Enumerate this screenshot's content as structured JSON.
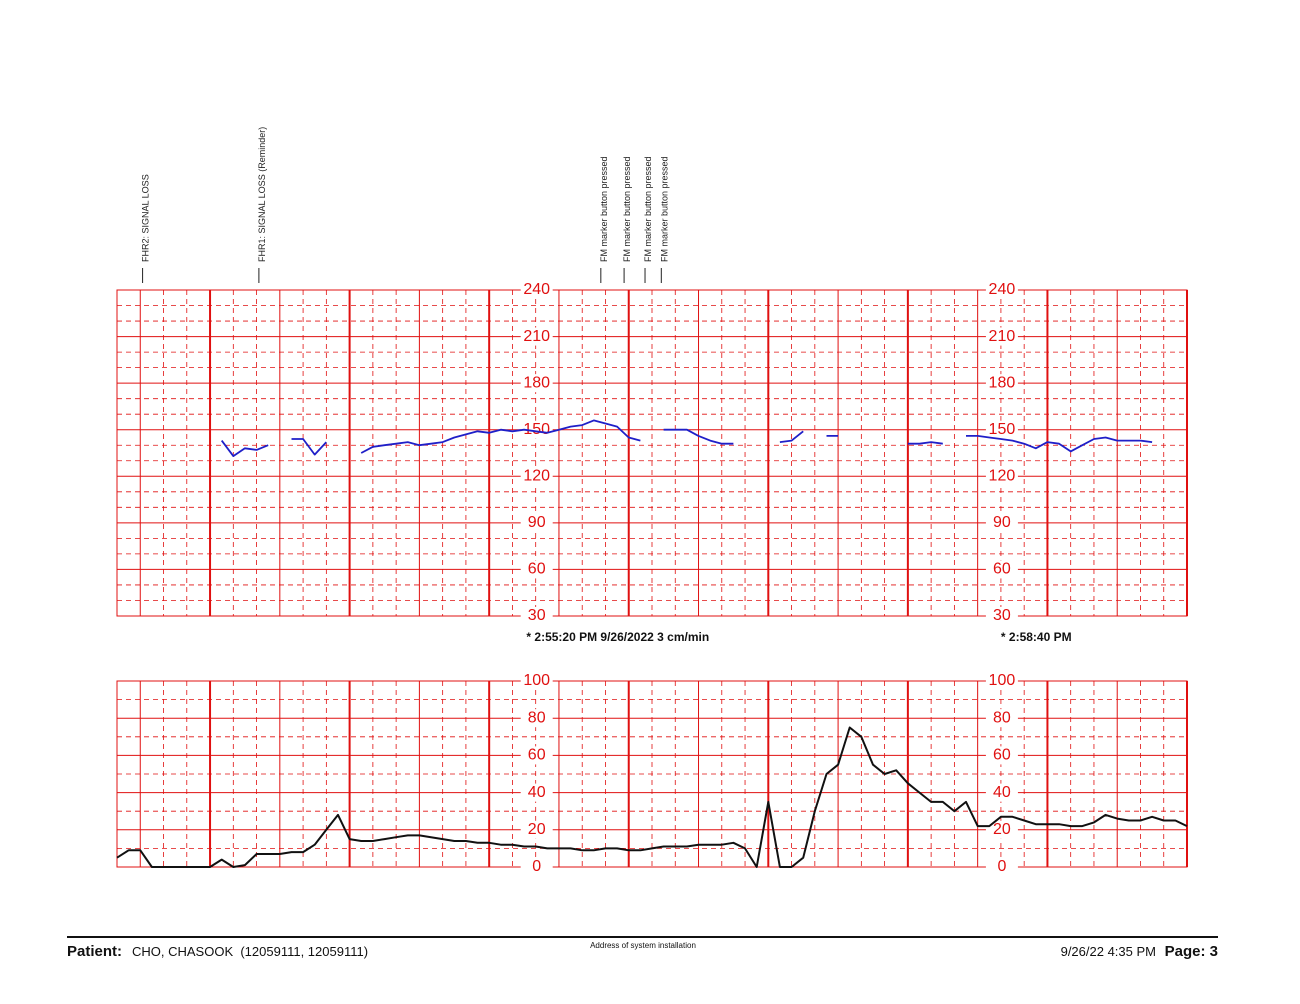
{
  "chart_data": [
    {
      "type": "line",
      "xlim": [
        0,
        460
      ],
      "ylim": [
        30,
        240
      ],
      "yticks": [
        30,
        60,
        90,
        120,
        150,
        180,
        210,
        240
      ],
      "color": "#1f1fc8",
      "x": [
        0,
        5,
        10,
        15,
        20,
        25,
        30,
        35,
        40,
        45,
        50,
        55,
        60,
        65,
        70,
        75,
        80,
        85,
        90,
        95,
        100,
        105,
        110,
        115,
        120,
        125,
        130,
        135,
        140,
        145,
        150,
        155,
        160,
        165,
        170,
        175,
        180,
        185,
        190,
        195,
        200,
        205,
        210,
        215,
        220,
        225,
        230,
        235,
        240,
        245,
        250,
        255,
        260,
        265,
        270,
        275,
        280,
        285,
        290,
        295,
        300,
        305,
        310,
        315,
        320,
        325,
        330,
        335,
        340,
        345,
        350,
        355,
        360,
        365,
        370,
        375,
        380,
        385,
        390,
        395,
        400,
        405,
        410,
        415,
        420,
        425,
        430,
        435,
        440,
        445,
        450,
        455,
        460
      ],
      "values": [
        null,
        null,
        null,
        null,
        null,
        null,
        null,
        null,
        null,
        143,
        133,
        138,
        137,
        140,
        null,
        144,
        144,
        134,
        142,
        null,
        null,
        135,
        139,
        140,
        141,
        142,
        140,
        141,
        142,
        145,
        147,
        149,
        148,
        150,
        149,
        150,
        149,
        148,
        150,
        152,
        153,
        156,
        154,
        152,
        145,
        143,
        null,
        150,
        150,
        150,
        146,
        143,
        141,
        141,
        null,
        null,
        null,
        142,
        143,
        149,
        null,
        146,
        146,
        null,
        null,
        null,
        null,
        null,
        141,
        141,
        142,
        141,
        null,
        146,
        146,
        145,
        144,
        143,
        141,
        138,
        142,
        141,
        136,
        140,
        144,
        145,
        143,
        143,
        143,
        142,
        null,
        null,
        null
      ],
      "annotations": [
        {
          "x": 11,
          "text": "FHR2: SIGNAL LOSS"
        },
        {
          "x": 61,
          "text": "FHR1: SIGNAL LOSS (Reminder)"
        },
        {
          "x": 208,
          "text": "FM marker button pressed"
        },
        {
          "x": 218,
          "text": "FM marker button pressed"
        },
        {
          "x": 227,
          "text": "FM marker button pressed"
        },
        {
          "x": 234,
          "text": "FM marker button pressed"
        }
      ],
      "time_labels": [
        {
          "x": 176,
          "text": "* 2:55:20 PM  9/26/2022  3 cm/min"
        },
        {
          "x": 380,
          "text": "* 2:58:40 PM"
        }
      ]
    },
    {
      "type": "line",
      "xlim": [
        0,
        460
      ],
      "ylim": [
        0,
        100
      ],
      "yticks": [
        0,
        20,
        40,
        60,
        80,
        100
      ],
      "color": "#111111",
      "x": [
        0,
        5,
        10,
        15,
        20,
        25,
        30,
        35,
        40,
        45,
        50,
        55,
        60,
        65,
        70,
        75,
        80,
        85,
        90,
        95,
        100,
        105,
        110,
        115,
        120,
        125,
        130,
        135,
        140,
        145,
        150,
        155,
        160,
        165,
        170,
        175,
        180,
        185,
        190,
        195,
        200,
        205,
        210,
        215,
        220,
        225,
        230,
        235,
        240,
        245,
        250,
        255,
        260,
        265,
        270,
        275,
        280,
        285,
        290,
        295,
        300,
        305,
        310,
        315,
        320,
        325,
        330,
        335,
        340,
        345,
        350,
        355,
        360,
        365,
        370,
        375,
        380,
        385,
        390,
        395,
        400,
        405,
        410,
        415,
        420,
        425,
        430,
        435,
        440,
        445,
        450,
        455,
        460
      ],
      "values": [
        5,
        9,
        9,
        0,
        0,
        0,
        0,
        0,
        0,
        4,
        0,
        1,
        7,
        7,
        7,
        8,
        8,
        12,
        20,
        28,
        15,
        14,
        14,
        15,
        16,
        17,
        17,
        16,
        15,
        14,
        14,
        13,
        13,
        12,
        12,
        11,
        11,
        10,
        10,
        10,
        9,
        9,
        10,
        10,
        9,
        9,
        10,
        11,
        11,
        11,
        12,
        12,
        12,
        13,
        10,
        0,
        35,
        0,
        0,
        5,
        30,
        50,
        55,
        75,
        70,
        55,
        50,
        52,
        45,
        40,
        35,
        35,
        30,
        35,
        22,
        22,
        27,
        27,
        25,
        23,
        23,
        23,
        22,
        22,
        24,
        28,
        26,
        25,
        25,
        27,
        25,
        25,
        22
      ]
    }
  ],
  "footer": {
    "patient_label": "Patient:",
    "patient": "CHO, CHASOOK  (12059111, 12059111)",
    "address": "Address of system installation",
    "datetime": "9/26/22 4:35 PM",
    "page": "Page: 3"
  }
}
